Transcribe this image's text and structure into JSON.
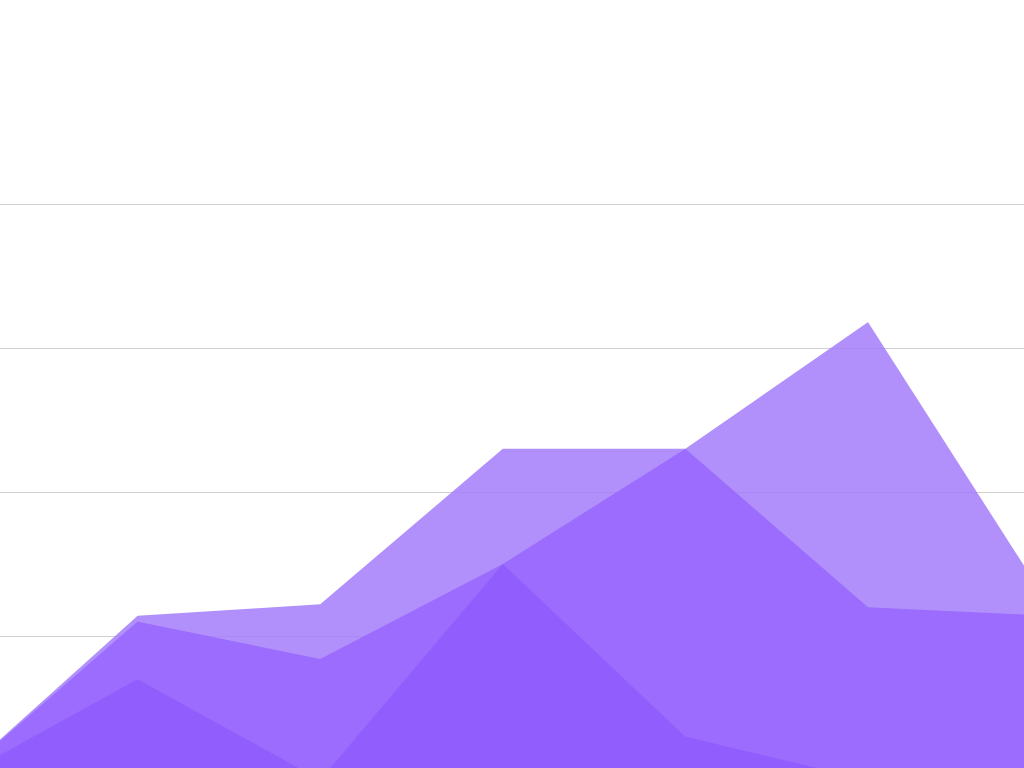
{
  "chart_data": {
    "type": "area",
    "title": "",
    "xlabel": "",
    "ylabel": "",
    "grid": true,
    "x": [
      0,
      1,
      2,
      3,
      4,
      5,
      6,
      7
    ],
    "ylim": [
      0,
      28
    ],
    "gridlines": [
      5,
      10,
      15,
      20
    ],
    "series": [
      {
        "color": "#a37dfb",
        "opacity": 0.85,
        "values": [
          0,
          5.7,
          6.1,
          11.5,
          11.5,
          15.9,
          6.0,
          5.4
        ]
      },
      {
        "color": "#9866fd",
        "opacity": 0.85,
        "values": [
          0,
          5.5,
          4.2,
          7.5,
          11.5,
          6.0,
          5.7,
          5.4
        ]
      },
      {
        "color": "#8f5afd",
        "opacity": 0.85,
        "values": [
          0,
          3.5,
          0,
          7.5,
          1.5,
          0,
          0,
          3.9
        ]
      }
    ]
  }
}
